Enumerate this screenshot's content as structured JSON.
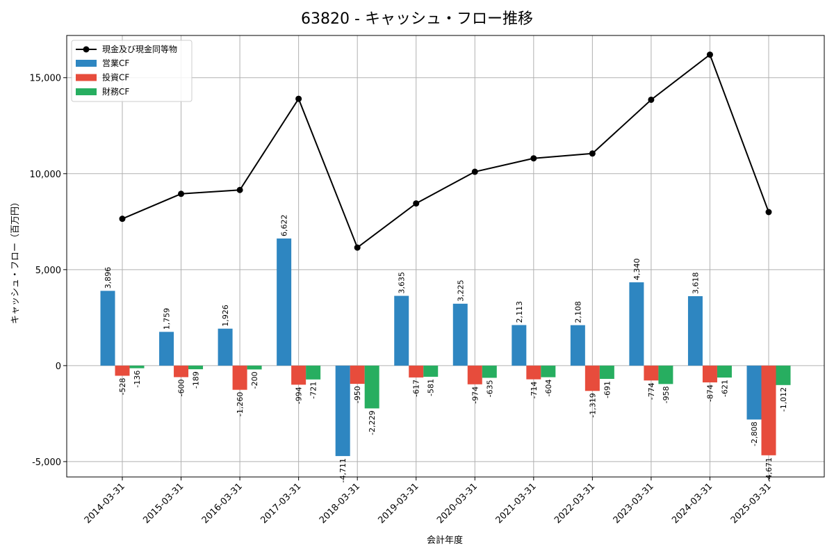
{
  "chart_data": {
    "type": "bar",
    "title": "63820 - キャッシュ・フロー推移",
    "xlabel": "会計年度",
    "ylabel": "キャッシュ・フロー（百万円）",
    "ylim": [
      -5800,
      17200
    ],
    "yticks": [
      -5000,
      0,
      5000,
      10000,
      15000
    ],
    "ytick_labels": [
      "-5,000",
      "0",
      "5,000",
      "10,000",
      "15,000"
    ],
    "grid": true,
    "legend_position": "top-left",
    "categories": [
      "2014-03-31",
      "2015-03-31",
      "2016-03-31",
      "2017-03-31",
      "2018-03-31",
      "2019-03-31",
      "2020-03-31",
      "2021-03-31",
      "2022-03-31",
      "2023-03-31",
      "2024-03-31",
      "2025-03-31"
    ],
    "series": [
      {
        "name": "営業CF",
        "color": "#2e86c1",
        "values": [
          3896,
          1759,
          1926,
          6622,
          -4711,
          3635,
          3225,
          2113,
          2108,
          4340,
          3618,
          -2808
        ],
        "labels": [
          "3,896",
          "1,759",
          "1,926",
          "6,622",
          "-4,711",
          "3,635",
          "3,225",
          "2,113",
          "2,108",
          "4,340",
          "3,618",
          "-2,808"
        ]
      },
      {
        "name": "投資CF",
        "color": "#e74c3c",
        "values": [
          -528,
          -600,
          -1260,
          -994,
          -950,
          -617,
          -974,
          -714,
          -1319,
          -774,
          -874,
          -4671
        ],
        "labels": [
          "-528",
          "-600",
          "-1,260",
          "-994",
          "-950",
          "-617",
          "-974",
          "-714",
          "-1,319",
          "-774",
          "-874",
          "-4,671"
        ]
      },
      {
        "name": "財務CF",
        "color": "#27ae60",
        "values": [
          -136,
          -189,
          -200,
          -721,
          -2229,
          -581,
          -635,
          -604,
          -691,
          -958,
          -621,
          -1012
        ],
        "labels": [
          "-136",
          "-189",
          "-200",
          "-721",
          "-2,229",
          "-581",
          "-635",
          "-604",
          "-691",
          "-958",
          "-621",
          "-1,012"
        ]
      }
    ],
    "line_series": {
      "name": "現金及び現金同等物",
      "color": "#000000",
      "values": [
        7650,
        8950,
        9150,
        13900,
        6150,
        8450,
        10100,
        10800,
        11050,
        13850,
        16200,
        8000
      ]
    }
  }
}
